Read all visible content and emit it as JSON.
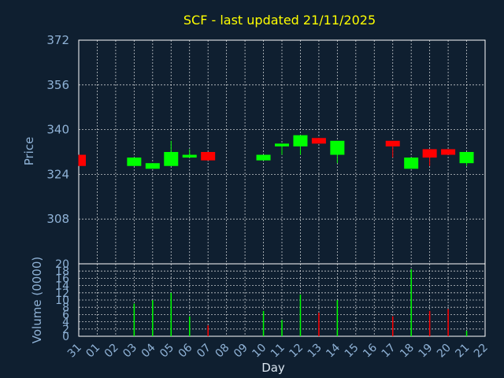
{
  "chart_data": [
    {
      "type": "candlestick",
      "title": "SCF - last updated 21/11/2025",
      "ylabel": "Price",
      "xlabel": "",
      "ylim": [
        292,
        372
      ],
      "yticks": [
        308,
        324,
        340,
        356,
        372
      ],
      "grid": true,
      "up_color": "#00ff00",
      "down_color": "#ff0000",
      "candles": [
        {
          "day": "31",
          "open": 331,
          "close": 327,
          "high": 331,
          "low": 327
        },
        {
          "day": "03",
          "open": 327,
          "close": 330,
          "high": 330,
          "low": 327
        },
        {
          "day": "04",
          "open": 326,
          "close": 328,
          "high": 328,
          "low": 326
        },
        {
          "day": "05",
          "open": 327,
          "close": 332,
          "high": 336,
          "low": 327
        },
        {
          "day": "06",
          "open": 330,
          "close": 331,
          "high": 333,
          "low": 330
        },
        {
          "day": "07",
          "open": 332,
          "close": 329,
          "high": 332,
          "low": 329
        },
        {
          "day": "10",
          "open": 329,
          "close": 331,
          "high": 331,
          "low": 329
        },
        {
          "day": "11",
          "open": 334,
          "close": 335,
          "high": 335,
          "low": 331
        },
        {
          "day": "12",
          "open": 334,
          "close": 338,
          "high": 338,
          "low": 331
        },
        {
          "day": "13",
          "open": 337,
          "close": 335,
          "high": 337,
          "low": 335
        },
        {
          "day": "14",
          "open": 331,
          "close": 336,
          "high": 336,
          "low": 328
        },
        {
          "day": "17",
          "open": 336,
          "close": 334,
          "high": 336,
          "low": 330
        },
        {
          "day": "18",
          "open": 326,
          "close": 330,
          "high": 330,
          "low": 326
        },
        {
          "day": "19",
          "open": 333,
          "close": 330,
          "high": 333,
          "low": 327
        },
        {
          "day": "20",
          "open": 333,
          "close": 331,
          "high": 333,
          "low": 331
        },
        {
          "day": "21",
          "open": 328,
          "close": 332,
          "high": 332,
          "low": 327
        }
      ]
    },
    {
      "type": "bar",
      "ylabel": "Volume (0000)",
      "xlabel": "Day",
      "ylim": [
        0,
        20
      ],
      "yticks": [
        0,
        2,
        4,
        6,
        8,
        10,
        12,
        14,
        16,
        18,
        20
      ],
      "grid": true,
      "categories": [
        "31",
        "01",
        "02",
        "03",
        "04",
        "05",
        "06",
        "07",
        "08",
        "09",
        "10",
        "11",
        "12",
        "13",
        "14",
        "15",
        "16",
        "17",
        "18",
        "19",
        "20",
        "21",
        "22"
      ],
      "values": [
        0,
        0,
        0,
        9,
        10,
        12,
        5.5,
        3,
        0,
        0,
        7,
        4.5,
        11.5,
        6.5,
        10,
        0,
        0,
        5.5,
        18.5,
        7,
        7.5,
        1.5,
        0
      ],
      "bar_colors": [
        "none",
        "none",
        "none",
        "#00ff00",
        "#00ff00",
        "#00ff00",
        "#00ff00",
        "#ff0000",
        "none",
        "none",
        "#00ff00",
        "#00ff00",
        "#00ff00",
        "#ff0000",
        "#00ff00",
        "none",
        "none",
        "#ff0000",
        "#00ff00",
        "#ff0000",
        "#ff0000",
        "#00ff00",
        "none"
      ]
    }
  ]
}
